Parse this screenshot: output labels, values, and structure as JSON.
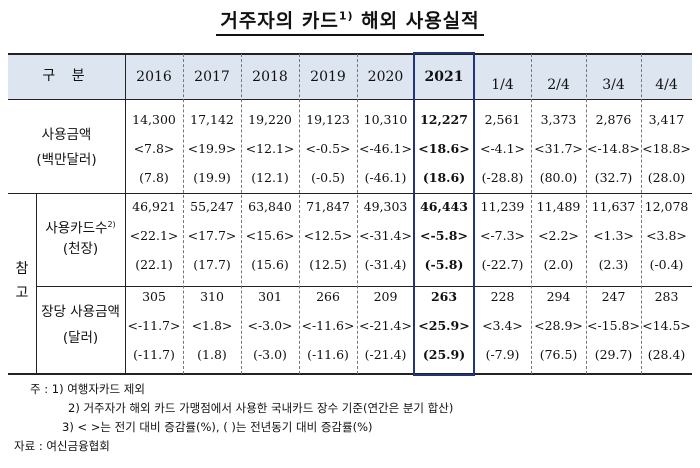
{
  "title": {
    "text": "거주자의 카드",
    "sup": "1)",
    "rest": " 해외 사용실적"
  },
  "header": {
    "gubun": "구  분",
    "years": [
      "2016",
      "2017",
      "2018",
      "2019",
      "2020",
      "2021"
    ],
    "quarters": [
      "1/4",
      "2/4",
      "3/4",
      "4/4"
    ]
  },
  "group_label": {
    "line1": "참",
    "line2": "고"
  },
  "rows": [
    {
      "label1": "사용금액",
      "label1_sup": "",
      "label2": "(백만달러)",
      "values": [
        "14,300",
        "17,142",
        "19,220",
        "19,123",
        "10,310",
        "12,227",
        "2,561",
        "3,373",
        "2,876",
        "3,417"
      ],
      "qoq": [
        "<7.8>",
        "<19.9>",
        "<12.1>",
        "<-0.5>",
        "<-46.1>",
        "<18.6>",
        "<-4.1>",
        "<31.7>",
        "<-14.8>",
        "<18.8>"
      ],
      "yoy": [
        "(7.8)",
        "(19.9)",
        "(12.1)",
        "(-0.5)",
        "(-46.1)",
        "(18.6)",
        "(-28.8)",
        "(80.0)",
        "(32.7)",
        "(28.0)"
      ]
    },
    {
      "label1": "사용카드수",
      "label1_sup": "2)",
      "label2": "(천장)",
      "values": [
        "46,921",
        "55,247",
        "63,840",
        "71,847",
        "49,303",
        "46,443",
        "11,239",
        "11,489",
        "11,637",
        "12,078"
      ],
      "qoq": [
        "<22.1>",
        "<17.7>",
        "<15.6>",
        "<12.5>",
        "<-31.4>",
        "<-5.8>",
        "<-7.3>",
        "<2.2>",
        "<1.3>",
        "<3.8>"
      ],
      "yoy": [
        "(22.1)",
        "(17.7)",
        "(15.6)",
        "(12.5)",
        "(-31.4)",
        "(-5.8)",
        "(-22.7)",
        "(2.0)",
        "(2.3)",
        "(-0.4)"
      ]
    },
    {
      "label1": "장당 사용금액",
      "label1_sup": "",
      "label2": "(달러)",
      "values": [
        "305",
        "310",
        "301",
        "266",
        "209",
        "263",
        "228",
        "294",
        "247",
        "283"
      ],
      "qoq": [
        "<-11.7>",
        "<1.8>",
        "<-3.0>",
        "<-11.6>",
        "<-21.4>",
        "<25.9>",
        "<3.4>",
        "<28.9>",
        "<-15.8>",
        "<14.5>"
      ],
      "yoy": [
        "(-11.7)",
        "(1.8)",
        "(-3.0)",
        "(-11.6)",
        "(-21.4)",
        "(25.9)",
        "(-7.9)",
        "(76.5)",
        "(29.7)",
        "(28.4)"
      ]
    }
  ],
  "notes": [
    "주 : 1)  여행자카드 제외",
    "2)  거주자가 해외 카드 가맹점에서 사용한 국내카드 장수 기준(연간은 분기 합산)",
    "3) <     >는 전기 대비 증감률(%), (     )는 전년동기 대비 증감률(%)",
    "자료 : 여신금융협회"
  ],
  "colors": {
    "header_bg": "#dde6f0",
    "highlight_border": "#23357a"
  }
}
